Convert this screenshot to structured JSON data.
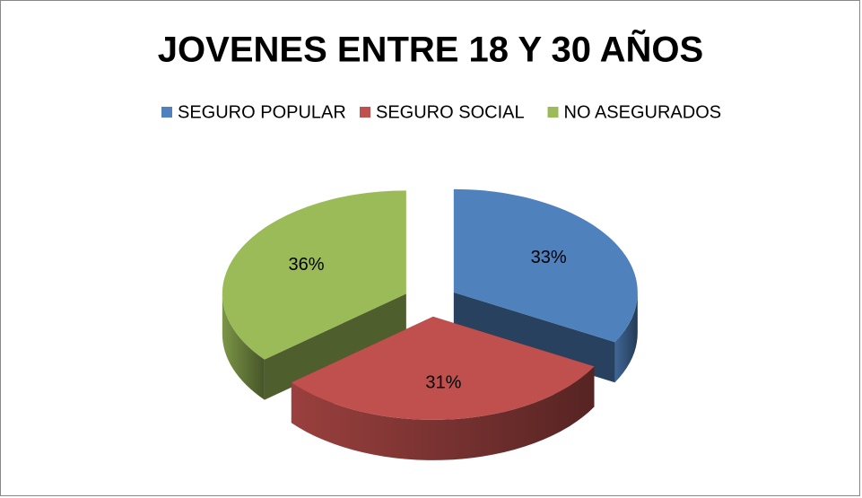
{
  "chart_data": {
    "type": "pie",
    "title": "JOVENES ENTRE 18 Y 30 AÑOS",
    "categories": [
      "SEGURO POPULAR",
      "SEGURO SOCIAL",
      "NO ASEGURADOS"
    ],
    "values": [
      33,
      31,
      36
    ],
    "value_labels": [
      "33%",
      "31%",
      "36%"
    ],
    "colors": [
      "#4f81bd",
      "#c0504d",
      "#9bbb59"
    ],
    "legend": "top"
  }
}
